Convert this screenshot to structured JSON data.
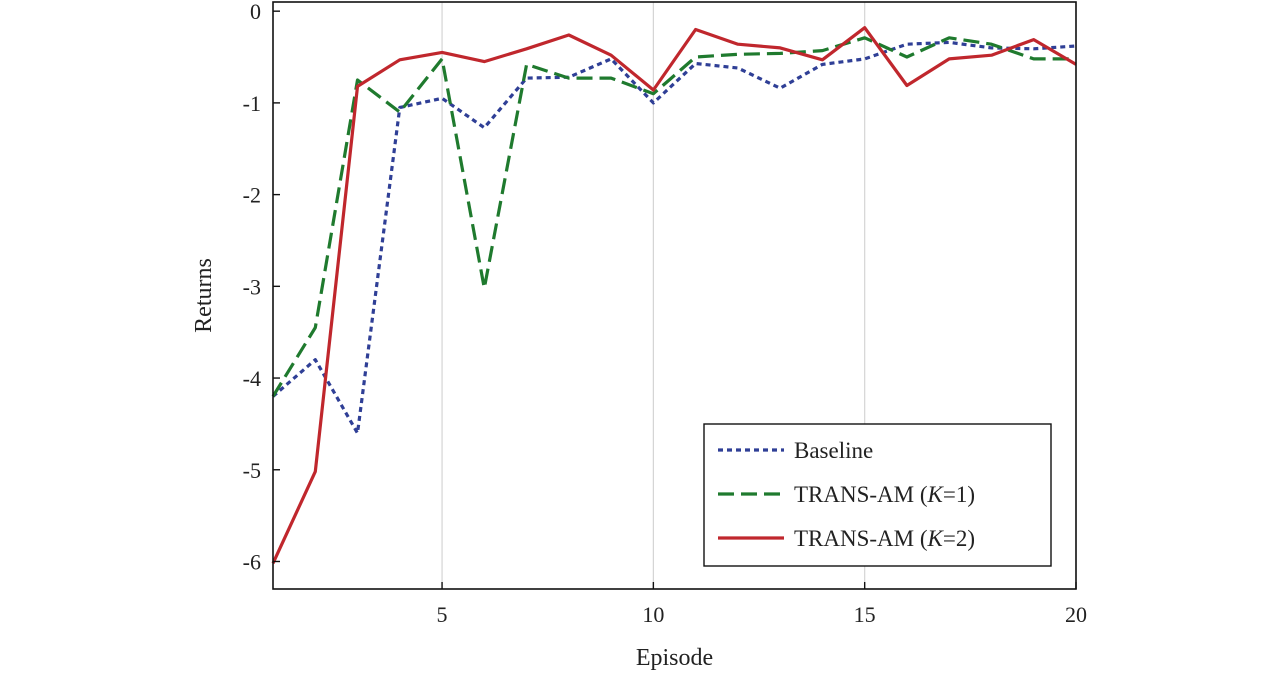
{
  "chart_data": {
    "type": "line",
    "xlabel": "Episode",
    "ylabel": "Returns",
    "xlim": [
      1,
      20
    ],
    "ylim": [
      -6.3,
      0.1
    ],
    "xticks": [
      5,
      10,
      15,
      20
    ],
    "xtick_labels": [
      "5",
      "10",
      "15",
      "20"
    ],
    "yticks": [
      0,
      -1,
      -2,
      -3,
      -4,
      -5,
      -6
    ],
    "ytick_labels": [
      "0",
      "-1",
      "-2",
      "-3",
      "-4",
      "-5",
      "-6"
    ],
    "grid": "vertical",
    "legend_position": "bottom-right",
    "x": [
      1,
      2,
      3,
      4,
      5,
      6,
      7,
      8,
      9,
      10,
      11,
      12,
      13,
      14,
      15,
      16,
      17,
      18,
      19,
      20
    ],
    "series": [
      {
        "name": "Baseline",
        "name_parts": {
          "prefix": "Baseline",
          "italic": "",
          "suffix": ""
        },
        "color": "#2f3f96",
        "dash": "dotted",
        "values": [
          -4.2,
          -3.8,
          -4.6,
          -1.05,
          -0.95,
          -1.27,
          -0.73,
          -0.72,
          -0.52,
          -1.0,
          -0.57,
          -0.62,
          -0.84,
          -0.58,
          -0.52,
          -0.36,
          -0.34,
          -0.4,
          -0.41,
          -0.38
        ]
      },
      {
        "name": "TRANS-AM (K=1)",
        "name_parts": {
          "prefix": "TRANS-AM (",
          "italic": "K",
          "suffix": "=1)"
        },
        "color": "#1f7a2e",
        "dash": "dashed",
        "values": [
          -4.2,
          -3.45,
          -0.75,
          -1.1,
          -0.52,
          -3.02,
          -0.58,
          -0.73,
          -0.73,
          -0.9,
          -0.5,
          -0.47,
          -0.46,
          -0.43,
          -0.29,
          -0.5,
          -0.29,
          -0.36,
          -0.52,
          -0.52
        ]
      },
      {
        "name": "TRANS-AM (K=2)",
        "name_parts": {
          "prefix": "TRANS-AM (",
          "italic": "K",
          "suffix": "=2)"
        },
        "color": "#c0272d",
        "dash": "solid",
        "values": [
          -6.02,
          -5.02,
          -0.82,
          -0.53,
          -0.45,
          -0.55,
          -0.41,
          -0.26,
          -0.48,
          -0.86,
          -0.2,
          -0.36,
          -0.4,
          -0.53,
          -0.18,
          -0.81,
          -0.52,
          -0.48,
          -0.31,
          -0.58
        ]
      }
    ]
  }
}
